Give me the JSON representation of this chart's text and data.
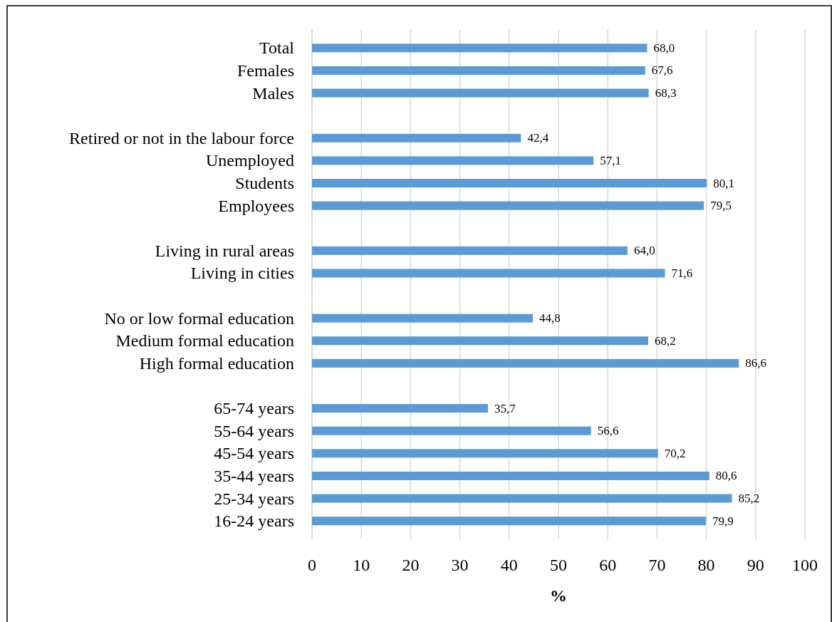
{
  "chart_data": {
    "type": "bar",
    "orientation": "horizontal",
    "xlabel": "%",
    "categories": [
      "Total",
      "Females",
      "Males",
      null,
      "Retired or not in the labour force",
      "Unemployed",
      "Students",
      "Employees",
      null,
      "Living in rural areas",
      "Living in cities",
      null,
      "No or low formal education",
      "Medium formal education",
      "High formal education",
      null,
      "65-74 years",
      "55-64 years",
      "45-54 years",
      "35-44 years",
      "25-34 years",
      "16-24 years"
    ],
    "values": [
      68.0,
      67.6,
      68.3,
      null,
      42.4,
      57.1,
      80.1,
      79.5,
      null,
      64.0,
      71.6,
      null,
      44.8,
      68.2,
      86.6,
      null,
      35.7,
      56.6,
      70.2,
      80.6,
      85.2,
      79.9
    ],
    "value_labels": [
      "68,0",
      "67,6",
      "68,3",
      null,
      "42,4",
      "57,1",
      "80,1",
      "79,5",
      null,
      "64,0",
      "71,6",
      null,
      "44,8",
      "68,2",
      "86,6",
      null,
      "35,7",
      "56,6",
      "70,2",
      "80,6",
      "85,2",
      "79,9"
    ],
    "color": "#5b9bd5",
    "xlim": [
      0,
      100
    ],
    "xticks": [
      0,
      10,
      20,
      30,
      40,
      50,
      60,
      70,
      80,
      90,
      100
    ],
    "grid": "x"
  }
}
